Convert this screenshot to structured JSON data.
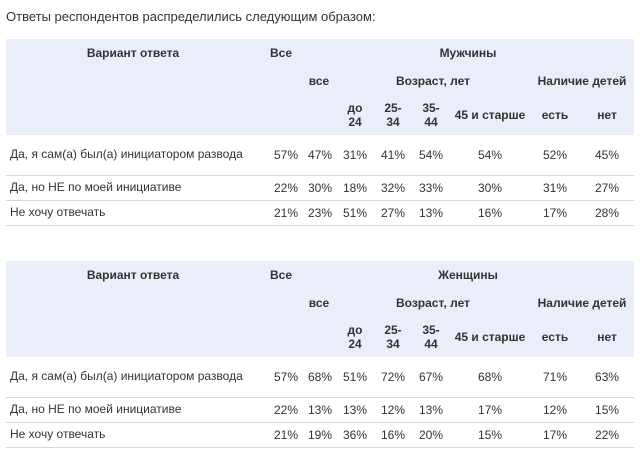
{
  "intro": "Ответы респондентов распределились следующим образом:",
  "tables": [
    {
      "header": {
        "variant": "Вариант ответа",
        "all": "Все",
        "group": "Мужчины",
        "group_all": "все",
        "age": "Возраст, лет",
        "children": "Наличие детей",
        "ages": [
          "до 24",
          "25-34",
          "35-44",
          "45 и старше"
        ],
        "kids": [
          "есть",
          "нет"
        ]
      },
      "rows": [
        {
          "label": "Да, я сам(а) был(а) инициатором развода",
          "values": [
            "57%",
            "47%",
            "31%",
            "41%",
            "54%",
            "54%",
            "52%",
            "45%"
          ]
        },
        {
          "label": "Да, но НЕ по моей инициативе",
          "values": [
            "22%",
            "30%",
            "18%",
            "32%",
            "33%",
            "30%",
            "31%",
            "27%"
          ]
        },
        {
          "label": "Не хочу отвечать",
          "values": [
            "21%",
            "23%",
            "51%",
            "27%",
            "13%",
            "16%",
            "17%",
            "28%"
          ]
        }
      ]
    },
    {
      "header": {
        "variant": "Вариант ответа",
        "all": "Все",
        "group": "Женщины",
        "group_all": "все",
        "age": "Возраст, лет",
        "children": "Наличие детей",
        "ages": [
          "до 24",
          "25-34",
          "35-44",
          "45 и старше"
        ],
        "kids": [
          "есть",
          "нет"
        ]
      },
      "rows": [
        {
          "label": "Да, я сам(а) был(а) инициатором развода",
          "values": [
            "57%",
            "68%",
            "51%",
            "72%",
            "67%",
            "68%",
            "71%",
            "63%"
          ]
        },
        {
          "label": "Да, но НЕ по моей инициативе",
          "values": [
            "22%",
            "13%",
            "13%",
            "12%",
            "13%",
            "17%",
            "12%",
            "15%"
          ]
        },
        {
          "label": "Не хочу отвечать",
          "values": [
            "21%",
            "19%",
            "36%",
            "16%",
            "20%",
            "15%",
            "17%",
            "22%"
          ]
        }
      ]
    }
  ]
}
